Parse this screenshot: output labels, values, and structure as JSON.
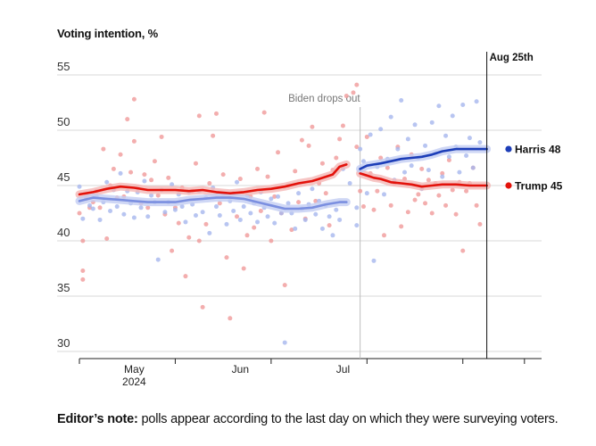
{
  "chart_data": {
    "type": "scatter",
    "ylabel": "Voting intention, %",
    "ylim": [
      30,
      56
    ],
    "yticks": [
      30,
      35,
      40,
      45,
      50,
      55
    ],
    "xlim_days": [
      0,
      135
    ],
    "xaxis": {
      "start_date": "2024-04-15",
      "month_labels": [
        {
          "label": "May",
          "day": 16
        },
        {
          "label": "Jun",
          "day": 47
        },
        {
          "label": "Jul",
          "day": 77
        }
      ],
      "year_label": {
        "label": "2024",
        "day": 16
      },
      "week_tick_days": [
        0,
        28,
        56,
        84,
        112,
        130
      ]
    },
    "annotations": {
      "biden": {
        "label": "Biden drops out",
        "day": 82
      },
      "today": {
        "label": "Aug 25th",
        "day": 119
      }
    },
    "series": [
      {
        "name": "Trump",
        "color": "#e3120b",
        "end_label": "Trump 45",
        "trend_pre": [
          [
            0,
            44.2
          ],
          [
            4,
            44.4
          ],
          [
            8,
            44.7
          ],
          [
            12,
            44.9
          ],
          [
            16,
            44.8
          ],
          [
            20,
            44.6
          ],
          [
            24,
            44.6
          ],
          [
            28,
            44.6
          ],
          [
            32,
            44.5
          ],
          [
            36,
            44.6
          ],
          [
            40,
            44.4
          ],
          [
            44,
            44.3
          ],
          [
            48,
            44.4
          ],
          [
            52,
            44.6
          ],
          [
            56,
            44.7
          ],
          [
            60,
            44.9
          ],
          [
            64,
            45.2
          ],
          [
            68,
            45.4
          ],
          [
            70,
            45.6
          ],
          [
            74,
            46.0
          ],
          [
            76,
            46.7
          ],
          [
            78,
            46.9
          ]
        ],
        "trend_post": [
          [
            82,
            46.1
          ],
          [
            84,
            45.9
          ],
          [
            86,
            45.7
          ],
          [
            88,
            45.6
          ],
          [
            91,
            45.3
          ],
          [
            94,
            45.2
          ],
          [
            97,
            45.1
          ],
          [
            100,
            44.9
          ],
          [
            103,
            45.0
          ],
          [
            106,
            45.1
          ],
          [
            110,
            45.1
          ],
          [
            114,
            45.0
          ],
          [
            119,
            45.0
          ]
        ],
        "polls": [
          [
            0,
            42.5
          ],
          [
            1,
            40
          ],
          [
            1,
            37.3
          ],
          [
            1,
            36.5
          ],
          [
            2,
            43.8
          ],
          [
            3,
            43
          ],
          [
            4,
            43.5
          ],
          [
            5,
            44.5
          ],
          [
            6,
            43
          ],
          [
            7,
            48.3
          ],
          [
            8,
            40.2
          ],
          [
            9,
            45
          ],
          [
            10,
            46.5
          ],
          [
            11,
            43.9
          ],
          [
            12,
            47.8
          ],
          [
            13,
            44
          ],
          [
            14,
            51
          ],
          [
            15,
            46.2
          ],
          [
            16,
            52.8
          ],
          [
            16,
            49
          ],
          [
            17,
            44.8
          ],
          [
            18,
            43.4
          ],
          [
            19,
            46
          ],
          [
            20,
            43
          ],
          [
            21,
            45.5
          ],
          [
            22,
            47.2
          ],
          [
            23,
            44.1
          ],
          [
            24,
            49.4
          ],
          [
            25,
            42.4
          ],
          [
            26,
            45.7
          ],
          [
            27,
            39.1
          ],
          [
            28,
            43
          ],
          [
            29,
            41.6
          ],
          [
            30,
            44.8
          ],
          [
            31,
            36.8
          ],
          [
            32,
            40.3
          ],
          [
            33,
            44.5
          ],
          [
            34,
            47
          ],
          [
            35,
            51.3
          ],
          [
            35,
            40
          ],
          [
            36,
            34
          ],
          [
            37,
            41.5
          ],
          [
            38,
            45.2
          ],
          [
            39,
            49.5
          ],
          [
            40,
            51.5
          ],
          [
            41,
            43.4
          ],
          [
            42,
            46
          ],
          [
            43,
            38.5
          ],
          [
            44,
            33
          ],
          [
            45,
            44.3
          ],
          [
            46,
            42.2
          ],
          [
            47,
            45.6
          ],
          [
            48,
            37.5
          ],
          [
            49,
            40.5
          ],
          [
            50,
            44
          ],
          [
            51,
            41.2
          ],
          [
            52,
            46.5
          ],
          [
            53,
            42.7
          ],
          [
            54,
            51.6
          ],
          [
            55,
            45.8
          ],
          [
            56,
            40
          ],
          [
            57,
            44
          ],
          [
            58,
            48
          ],
          [
            59,
            42.5
          ],
          [
            60,
            36
          ],
          [
            61,
            45
          ],
          [
            62,
            41
          ],
          [
            63,
            46.3
          ],
          [
            64,
            43.5
          ],
          [
            65,
            49.1
          ],
          [
            66,
            42
          ],
          [
            67,
            48.6
          ],
          [
            68,
            50.3
          ],
          [
            69,
            43.6
          ],
          [
            70,
            45.2
          ],
          [
            71,
            47
          ],
          [
            72,
            44.3
          ],
          [
            73,
            41.4
          ],
          [
            74,
            46.4
          ],
          [
            75,
            47.5
          ],
          [
            76,
            49.2
          ],
          [
            77,
            50.4
          ],
          [
            78,
            53.1
          ],
          [
            80,
            53.4
          ],
          [
            81,
            54.1
          ],
          [
            81,
            48.5
          ],
          [
            82,
            44.5
          ],
          [
            83,
            43.1
          ],
          [
            84,
            49.4
          ],
          [
            85,
            46.1
          ],
          [
            86,
            42.8
          ],
          [
            87,
            44.5
          ],
          [
            88,
            47.5
          ],
          [
            89,
            40.5
          ],
          [
            90,
            46.6
          ],
          [
            91,
            43.2
          ],
          [
            92,
            45.2
          ],
          [
            93,
            48.5
          ],
          [
            94,
            41.3
          ],
          [
            95,
            45.6
          ],
          [
            96,
            42.6
          ],
          [
            97,
            47.8
          ],
          [
            98,
            43.7
          ],
          [
            99,
            44.2
          ],
          [
            100,
            46.5
          ],
          [
            101,
            43.4
          ],
          [
            102,
            45.5
          ],
          [
            103,
            42.5
          ],
          [
            104,
            45.2
          ],
          [
            105,
            44.1
          ],
          [
            106,
            46.1
          ],
          [
            107,
            43.2
          ],
          [
            108,
            47.3
          ],
          [
            109,
            44.6
          ],
          [
            110,
            42.4
          ],
          [
            111,
            45.3
          ],
          [
            112,
            39.1
          ],
          [
            113,
            44.5
          ],
          [
            114,
            45.2
          ],
          [
            115,
            46.6
          ],
          [
            116,
            43.2
          ],
          [
            117,
            41.5
          ]
        ]
      },
      {
        "name": "Harris",
        "color": "#1d3eb8",
        "end_label": "Harris 48",
        "trend_pre": [
          [
            0,
            43.6
          ],
          [
            4,
            43.9
          ],
          [
            8,
            43.8
          ],
          [
            12,
            43.7
          ],
          [
            16,
            43.6
          ],
          [
            20,
            43.5
          ],
          [
            24,
            43.5
          ],
          [
            28,
            43.5
          ],
          [
            32,
            43.7
          ],
          [
            36,
            43.8
          ],
          [
            40,
            43.9
          ],
          [
            44,
            43.9
          ],
          [
            48,
            43.8
          ],
          [
            52,
            43.5
          ],
          [
            56,
            43.2
          ],
          [
            60,
            42.9
          ],
          [
            64,
            42.9
          ],
          [
            68,
            43.0
          ],
          [
            72,
            43.3
          ],
          [
            76,
            43.5
          ],
          [
            78,
            43.5
          ]
        ],
        "trend_post": [
          [
            82,
            46.5
          ],
          [
            84,
            46.8
          ],
          [
            86,
            46.9
          ],
          [
            88,
            47.0
          ],
          [
            91,
            47.2
          ],
          [
            94,
            47.4
          ],
          [
            97,
            47.5
          ],
          [
            100,
            47.6
          ],
          [
            103,
            47.8
          ],
          [
            106,
            48.1
          ],
          [
            110,
            48.3
          ],
          [
            114,
            48.3
          ],
          [
            119,
            48.3
          ]
        ],
        "polls": [
          [
            0,
            44.9
          ],
          [
            1,
            42
          ],
          [
            2,
            44.2
          ],
          [
            3,
            43.2
          ],
          [
            4,
            42.9
          ],
          [
            5,
            44
          ],
          [
            6,
            41.9
          ],
          [
            7,
            43.5
          ],
          [
            8,
            45.3
          ],
          [
            9,
            42.7
          ],
          [
            10,
            44.6
          ],
          [
            11,
            43.1
          ],
          [
            12,
            46.1
          ],
          [
            13,
            42.4
          ],
          [
            14,
            44.5
          ],
          [
            15,
            43.4
          ],
          [
            16,
            42.1
          ],
          [
            17,
            44.4
          ],
          [
            18,
            43
          ],
          [
            19,
            45.4
          ],
          [
            20,
            42.2
          ],
          [
            21,
            44.1
          ],
          [
            22,
            43.5
          ],
          [
            23,
            38.3
          ],
          [
            24,
            44.6
          ],
          [
            25,
            42.6
          ],
          [
            26,
            43.5
          ],
          [
            27,
            45.1
          ],
          [
            28,
            42.8
          ],
          [
            29,
            44.2
          ],
          [
            30,
            43.1
          ],
          [
            31,
            41.7
          ],
          [
            32,
            44.4
          ],
          [
            33,
            43.3
          ],
          [
            34,
            42.3
          ],
          [
            35,
            44.5
          ],
          [
            36,
            42.6
          ],
          [
            37,
            43.9
          ],
          [
            38,
            40.7
          ],
          [
            39,
            44.8
          ],
          [
            40,
            43.1
          ],
          [
            41,
            42.3
          ],
          [
            42,
            44.2
          ],
          [
            43,
            41.5
          ],
          [
            44,
            43.6
          ],
          [
            45,
            42.7
          ],
          [
            46,
            45.3
          ],
          [
            47,
            41.9
          ],
          [
            48,
            43.1
          ],
          [
            49,
            44.1
          ],
          [
            50,
            42.5
          ],
          [
            51,
            43.4
          ],
          [
            52,
            41.7
          ],
          [
            53,
            44.4
          ],
          [
            54,
            43
          ],
          [
            55,
            42.2
          ],
          [
            56,
            43.8
          ],
          [
            57,
            41.6
          ],
          [
            58,
            44
          ],
          [
            59,
            42.5
          ],
          [
            60,
            30.8
          ],
          [
            61,
            43.4
          ],
          [
            62,
            42.5
          ],
          [
            63,
            41.1
          ],
          [
            64,
            44.3
          ],
          [
            65,
            42.9
          ],
          [
            66,
            41.9
          ],
          [
            67,
            43.3
          ],
          [
            68,
            44.7
          ],
          [
            69,
            42.4
          ],
          [
            70,
            43.6
          ],
          [
            71,
            41.1
          ],
          [
            72,
            43.2
          ],
          [
            73,
            42.2
          ],
          [
            74,
            40.5
          ],
          [
            75,
            42.8
          ],
          [
            76,
            41.9
          ],
          [
            77,
            46.5
          ],
          [
            79,
            45.2
          ],
          [
            81,
            43
          ],
          [
            81,
            41.4
          ],
          [
            82,
            48.3
          ],
          [
            83,
            47.2
          ],
          [
            84,
            44.3
          ],
          [
            85,
            49.6
          ],
          [
            86,
            38.2
          ],
          [
            87,
            46.7
          ],
          [
            88,
            50.1
          ],
          [
            89,
            44.2
          ],
          [
            90,
            47.4
          ],
          [
            91,
            51.2
          ],
          [
            92,
            45.5
          ],
          [
            93,
            48.3
          ],
          [
            94,
            52.7
          ],
          [
            95,
            46.2
          ],
          [
            96,
            49.2
          ],
          [
            97,
            46.8
          ],
          [
            98,
            50.5
          ],
          [
            99,
            47.5
          ],
          [
            100,
            44.7
          ],
          [
            101,
            48.6
          ],
          [
            102,
            46.4
          ],
          [
            103,
            50.7
          ],
          [
            104,
            47.9
          ],
          [
            105,
            52.2
          ],
          [
            106,
            45.8
          ],
          [
            107,
            49.5
          ],
          [
            108,
            47.6
          ],
          [
            109,
            51.3
          ],
          [
            110,
            48.5
          ],
          [
            111,
            46.2
          ],
          [
            112,
            52.3
          ],
          [
            113,
            47.7
          ],
          [
            114,
            49.3
          ],
          [
            115,
            46.6
          ],
          [
            116,
            52.6
          ],
          [
            117,
            48.9
          ]
        ]
      }
    ]
  },
  "note": {
    "bold": "Editor’s note:",
    "text": "polls appear according to the last day on which they were surveying voters."
  }
}
